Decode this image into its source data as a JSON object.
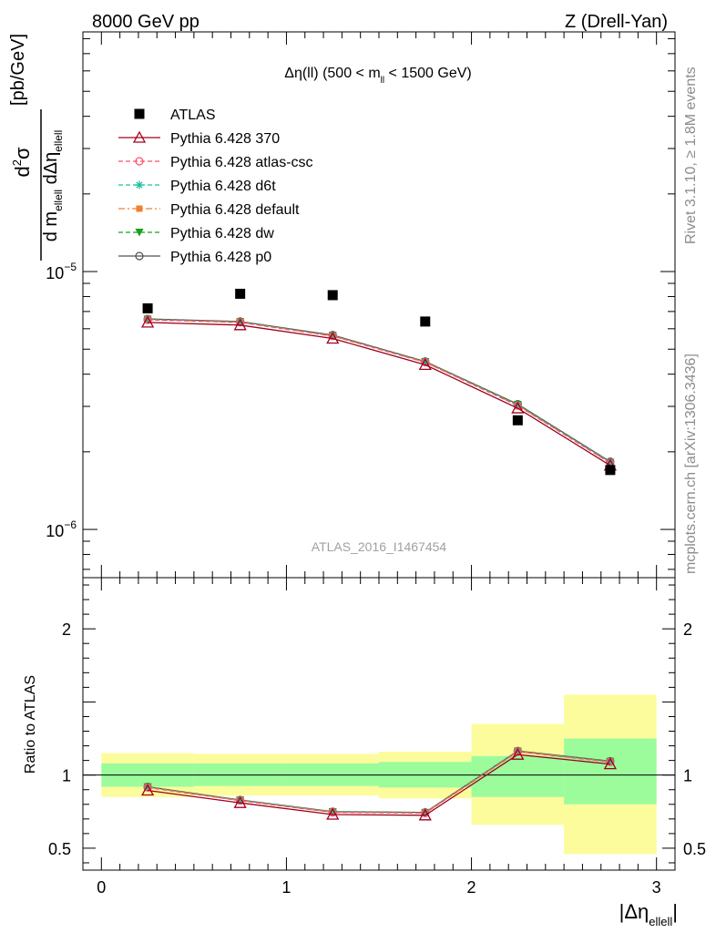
{
  "header": {
    "left": "8000 GeV pp",
    "right": "Z (Drell-Yan)"
  },
  "side_text": {
    "rivet": "Rivet 3.1.10, ≥ 1.8M events",
    "mcplots": "mcplots.cern.ch [arXiv:1306.3436]"
  },
  "watermark": "ATLAS_2016_I1467454",
  "colors": {
    "data": "#000000",
    "p370": "#a0001e",
    "atlas_csc": "#ff4d6d",
    "d6t": "#19c0a0",
    "default": "#f08030",
    "dw": "#1aa01a",
    "p0": "#505050",
    "band_inner": "#9cfc9c",
    "band_outer": "#fcfc9c"
  },
  "chart_data": [
    {
      "type": "scatter",
      "title_parts": {
        "pre": "Δη(ll) (500 < m",
        "sub": "ll",
        "post": " < 1500 GeV)"
      },
      "ylabel_parts": {
        "num_d": "d",
        "num_sup": "2",
        "num_sigma": "σ",
        "den_d": "d m",
        "den_sub1": "ellell",
        "den_mid": " dΔη",
        "den_sub2": "ellell",
        "unit": "[pb/GeV]"
      },
      "yscale": "log",
      "ylim": [
        6.5e-07,
        8.5e-05
      ],
      "xlim": [
        -0.1,
        3.1
      ],
      "yticks": [
        {
          "base": "10",
          "exp": "−5",
          "value": 1e-05
        },
        {
          "base": "10",
          "exp": "−6",
          "value": 1e-06
        }
      ],
      "x": [
        0.25,
        0.75,
        1.25,
        1.75,
        2.25,
        2.75
      ],
      "series": [
        {
          "name": "ATLAS",
          "key": "data",
          "marker": "square",
          "line": "none",
          "values": [
            7.2e-06,
            8.2e-06,
            8.1e-06,
            6.4e-06,
            2.65e-06,
            1.7e-06
          ]
        },
        {
          "name": "Pythia 6.428 370",
          "key": "p370",
          "marker": "triangle-open",
          "line": "solid",
          "values": [
            6.35e-06,
            6.2e-06,
            5.5e-06,
            4.35e-06,
            2.95e-06,
            1.77e-06
          ]
        },
        {
          "name": "Pythia 6.428 atlas-csc",
          "key": "atlas_csc",
          "marker": "circle-open",
          "line": "dashed",
          "values": [
            6.5e-06,
            6.35e-06,
            5.62e-06,
            4.45e-06,
            3.02e-06,
            1.81e-06
          ]
        },
        {
          "name": "Pythia 6.428 d6t",
          "key": "d6t",
          "marker": "star",
          "line": "dashed",
          "values": [
            6.52e-06,
            6.37e-06,
            5.64e-06,
            4.46e-06,
            3.04e-06,
            1.82e-06
          ]
        },
        {
          "name": "Pythia 6.428 default",
          "key": "default",
          "marker": "square-small",
          "line": "dashdot",
          "values": [
            6.51e-06,
            6.36e-06,
            5.63e-06,
            4.45e-06,
            3.03e-06,
            1.81e-06
          ]
        },
        {
          "name": "Pythia 6.428 dw",
          "key": "dw",
          "marker": "triangle-down",
          "line": "dashed",
          "values": [
            6.53e-06,
            6.38e-06,
            5.65e-06,
            4.47e-06,
            3.05e-06,
            1.82e-06
          ]
        },
        {
          "name": "Pythia 6.428 p0",
          "key": "p0",
          "marker": "circle-open",
          "line": "solid",
          "values": [
            6.55e-06,
            6.4e-06,
            5.67e-06,
            4.48e-06,
            3.06e-06,
            1.83e-06
          ]
        }
      ]
    },
    {
      "type": "scatter",
      "ylabel": "Ratio to ATLAS",
      "xlabel_parts": {
        "pre": "|Δη",
        "sub": "ellell",
        "post": "|"
      },
      "xlim": [
        -0.1,
        3.1
      ],
      "ylim": [
        0.35,
        2.35
      ],
      "xticks": [
        0,
        1,
        2,
        3
      ],
      "yticks": [
        0.5,
        1,
        2
      ],
      "x_edges": [
        0,
        0.5,
        1,
        1.5,
        2,
        2.5,
        3
      ],
      "band_inner": [
        [
          0.92,
          1.08
        ],
        [
          0.925,
          1.08
        ],
        [
          0.925,
          1.08
        ],
        [
          0.915,
          1.09
        ],
        [
          0.85,
          1.13
        ],
        [
          0.8,
          1.25
        ]
      ],
      "band_outer": [
        [
          0.85,
          1.15
        ],
        [
          0.86,
          1.145
        ],
        [
          0.86,
          1.145
        ],
        [
          0.84,
          1.16
        ],
        [
          0.66,
          1.35
        ],
        [
          0.46,
          1.55
        ]
      ],
      "x": [
        0.25,
        0.75,
        1.25,
        1.75,
        2.25,
        2.75
      ],
      "series": [
        {
          "name": "Pythia 6.428 370",
          "key": "p370",
          "marker": "triangle-open",
          "line": "solid",
          "values": [
            0.895,
            0.81,
            0.73,
            0.725,
            1.14,
            1.075
          ]
        },
        {
          "name": "Pythia 6.428 atlas-csc",
          "key": "atlas_csc",
          "marker": "circle-open",
          "line": "dashed",
          "values": [
            0.915,
            0.825,
            0.745,
            0.74,
            1.16,
            1.09
          ]
        },
        {
          "name": "Pythia 6.428 d6t",
          "key": "d6t",
          "marker": "star",
          "line": "dashed",
          "values": [
            0.918,
            0.828,
            0.748,
            0.742,
            1.162,
            1.092
          ]
        },
        {
          "name": "Pythia 6.428 default",
          "key": "default",
          "marker": "square-small",
          "line": "dashdot",
          "values": [
            0.916,
            0.826,
            0.746,
            0.741,
            1.161,
            1.091
          ]
        },
        {
          "name": "Pythia 6.428 dw",
          "key": "dw",
          "marker": "triangle-down",
          "line": "dashed",
          "values": [
            0.919,
            0.829,
            0.749,
            0.743,
            1.163,
            1.093
          ]
        },
        {
          "name": "Pythia 6.428 p0",
          "key": "p0",
          "marker": "circle-open",
          "line": "solid",
          "values": [
            0.92,
            0.83,
            0.75,
            0.745,
            1.165,
            1.095
          ]
        }
      ]
    }
  ]
}
